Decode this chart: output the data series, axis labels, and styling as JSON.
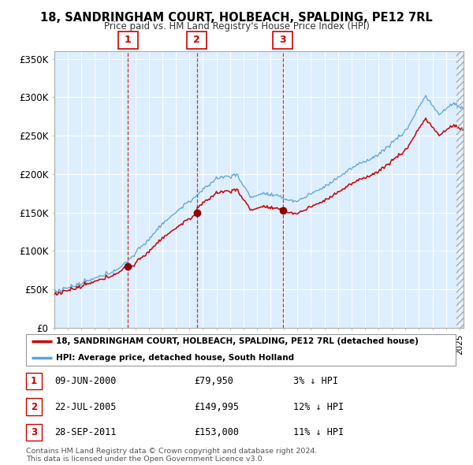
{
  "title": "18, SANDRINGHAM COURT, HOLBEACH, SPALDING, PE12 7RL",
  "subtitle": "Price paid vs. HM Land Registry's House Price Index (HPI)",
  "xlim_start": 1995.0,
  "xlim_end": 2025.3,
  "ylim": [
    0,
    360000
  ],
  "yticks": [
    0,
    50000,
    100000,
    150000,
    200000,
    250000,
    300000,
    350000
  ],
  "ytick_labels": [
    "£0",
    "£50K",
    "£100K",
    "£150K",
    "£200K",
    "£250K",
    "£300K",
    "£350K"
  ],
  "sale_dates": [
    2000.44,
    2005.55,
    2011.92
  ],
  "sale_prices": [
    79950,
    149995,
    153000
  ],
  "sale_labels": [
    "1",
    "2",
    "3"
  ],
  "legend_line1": "18, SANDRINGHAM COURT, HOLBEACH, SPALDING, PE12 7RL (detached house)",
  "legend_line2": "HPI: Average price, detached house, South Holland",
  "table_rows": [
    [
      "1",
      "09-JUN-2000",
      "£79,950",
      "3% ↓ HPI"
    ],
    [
      "2",
      "22-JUL-2005",
      "£149,995",
      "12% ↓ HPI"
    ],
    [
      "3",
      "28-SEP-2011",
      "£153,000",
      "11% ↓ HPI"
    ]
  ],
  "footer": "Contains HM Land Registry data © Crown copyright and database right 2024.\nThis data is licensed under the Open Government Licence v3.0.",
  "hpi_color": "#5ba3d9",
  "price_color": "#cc0000",
  "background_color": "#ffffff",
  "chart_bg_color": "#ddeeff",
  "grid_color": "#ffffff"
}
